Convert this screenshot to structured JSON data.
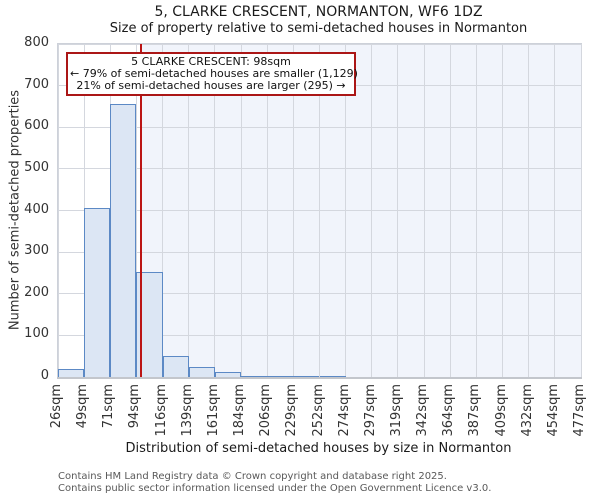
{
  "title": "5, CLARKE CRESCENT, NORMANTON, WF6 1DZ",
  "subtitle": "Size of property relative to semi-detached houses in Normanton",
  "annotation": {
    "line1": "5 CLARKE CRESCENT: 98sqm",
    "line2": "← 79% of semi-detached houses are smaller (1,129)",
    "line3": "21% of semi-detached houses are larger (295) →"
  },
  "x_axis": {
    "title": "Distribution of semi-detached houses by size in Normanton"
  },
  "y_axis": {
    "title": "Number of semi-detached properties"
  },
  "footer": {
    "line1": "Contains HM Land Registry data © Crown copyright and database right 2025.",
    "line2": "Contains public sector information licensed under the Open Government Licence v3.0."
  },
  "chart_data": {
    "type": "bar",
    "title": "5, CLARKE CRESCENT, NORMANTON, WF6 1DZ",
    "subtitle": "Size of property relative to semi-detached houses in Normanton",
    "xlabel": "Distribution of semi-detached houses by size in Normanton",
    "ylabel": "Number of semi-detached properties",
    "bin_edges_sqm": [
      26,
      49,
      71,
      94,
      116,
      139,
      161,
      184,
      206,
      229,
      252,
      274,
      297,
      319,
      342,
      364,
      387,
      409,
      432,
      454,
      477
    ],
    "x_tick_labels": [
      "26sqm",
      "49sqm",
      "71sqm",
      "94sqm",
      "116sqm",
      "139sqm",
      "161sqm",
      "184sqm",
      "206sqm",
      "229sqm",
      "252sqm",
      "274sqm",
      "297sqm",
      "319sqm",
      "342sqm",
      "364sqm",
      "387sqm",
      "409sqm",
      "432sqm",
      "454sqm",
      "477sqm"
    ],
    "counts": [
      20,
      407,
      655,
      253,
      50,
      25,
      12,
      3,
      2,
      2,
      2,
      0,
      0,
      0,
      0,
      0,
      0,
      0,
      0,
      0
    ],
    "y_tick_labels": [
      "0",
      "100",
      "200",
      "300",
      "400",
      "500",
      "600",
      "700",
      "800"
    ],
    "ylim": [
      0,
      800
    ],
    "grid": true,
    "marker_value_sqm": 98,
    "marker_label": "5 CLARKE CRESCENT: 98sqm",
    "smaller_pct": 79,
    "smaller_count": 1129,
    "larger_pct": 21,
    "larger_count": 295,
    "colors": {
      "bar_fill": "#dce6f4",
      "bar_edge": "#5c89c5",
      "marker_line": "#bb1414",
      "shade_right_of_marker": "#f1f4fb",
      "grid_line": "#d4d7de",
      "annotation_border": "#ab1616"
    }
  }
}
